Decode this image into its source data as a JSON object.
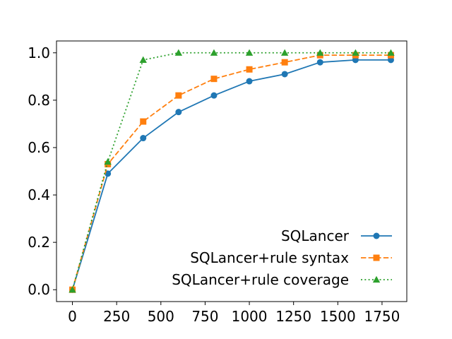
{
  "chart_data": {
    "type": "line",
    "title": "",
    "xlabel": "",
    "ylabel": "",
    "xlim": [
      -90,
      1890
    ],
    "ylim": [
      -0.05,
      1.05
    ],
    "xticks": [
      0,
      250,
      500,
      750,
      1000,
      1250,
      1500,
      1750
    ],
    "yticks": [
      0.0,
      0.2,
      0.4,
      0.6,
      0.8,
      1.0
    ],
    "xtick_labels": [
      "0",
      "250",
      "500",
      "750",
      "1000",
      "1250",
      "1500",
      "1750"
    ],
    "ytick_labels": [
      "0.0",
      "0.2",
      "0.4",
      "0.6",
      "0.8",
      "1.0"
    ],
    "grid": false,
    "legend_position": "lower-right",
    "x": [
      0,
      200,
      400,
      600,
      800,
      1000,
      1200,
      1400,
      1600,
      1800
    ],
    "series": [
      {
        "name": "SQLancer",
        "color": "#1f77b4",
        "line_style": "solid",
        "marker": "circle",
        "values": [
          0.0,
          0.49,
          0.64,
          0.75,
          0.82,
          0.88,
          0.91,
          0.96,
          0.97,
          0.97
        ]
      },
      {
        "name": "SQLancer+rule syntax",
        "color": "#ff7f0e",
        "line_style": "dashed",
        "marker": "square",
        "values": [
          0.0,
          0.53,
          0.71,
          0.82,
          0.89,
          0.93,
          0.96,
          0.99,
          0.99,
          0.99
        ]
      },
      {
        "name": "SQLancer+rule coverage",
        "color": "#2ca02c",
        "line_style": "dotted",
        "marker": "triangle",
        "values": [
          0.0,
          0.54,
          0.97,
          1.0,
          1.0,
          1.0,
          1.0,
          1.0,
          1.0,
          1.0
        ]
      }
    ]
  }
}
